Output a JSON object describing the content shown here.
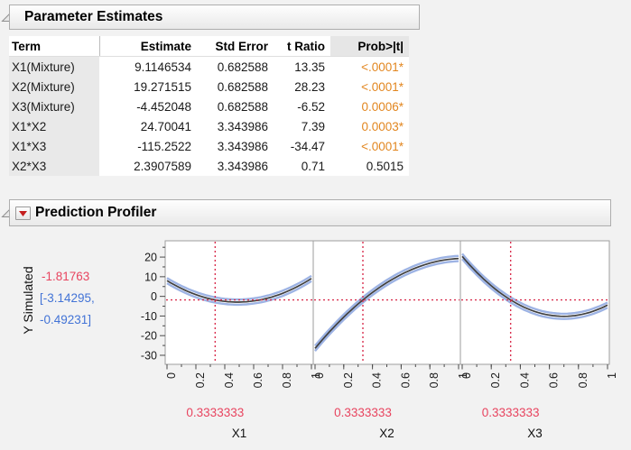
{
  "param_estimates": {
    "title": "Parameter Estimates",
    "columns": [
      "Term",
      "Estimate",
      "Std Error",
      "t Ratio",
      "Prob>|t|"
    ],
    "rows": [
      {
        "term": "X1(Mixture)",
        "estimate": "9.1146534",
        "std_error": "0.682588",
        "t_ratio": "13.35",
        "prob": "<.0001*",
        "sig": true
      },
      {
        "term": "X2(Mixture)",
        "estimate": "19.271515",
        "std_error": "0.682588",
        "t_ratio": "28.23",
        "prob": "<.0001*",
        "sig": true
      },
      {
        "term": "X3(Mixture)",
        "estimate": "-4.452048",
        "std_error": "0.682588",
        "t_ratio": "-6.52",
        "prob": "0.0006*",
        "sig": true
      },
      {
        "term": "X1*X2",
        "estimate": "24.70041",
        "std_error": "3.343986",
        "t_ratio": "7.39",
        "prob": "0.0003*",
        "sig": true
      },
      {
        "term": "X1*X3",
        "estimate": "-115.2522",
        "std_error": "3.343986",
        "t_ratio": "-34.47",
        "prob": "<.0001*",
        "sig": true
      },
      {
        "term": "X2*X3",
        "estimate": "2.3907589",
        "std_error": "3.343986",
        "t_ratio": "0.71",
        "prob": "0.5015",
        "sig": false
      }
    ]
  },
  "profiler": {
    "title": "Prediction Profiler",
    "current_value": "-1.81763",
    "ci_lines": [
      "[-3.14295,",
      "-0.49231]"
    ]
  },
  "chart_data": {
    "type": "line",
    "title": "Prediction Profiler",
    "ylabel": "Y Simulated",
    "response_current": -1.81763,
    "response_ci": [
      -3.14295,
      -0.49231
    ],
    "ylim": [
      -34.6,
      28.3
    ],
    "y_major_ticks": [
      20,
      10,
      0,
      -10,
      -20,
      -30
    ],
    "y_minor_step": 5,
    "xlim": [
      0,
      1
    ],
    "x_major_ticks": [
      0,
      0.2,
      0.4,
      0.6,
      0.8,
      1
    ],
    "x_major_tick_labels": [
      "0",
      "0.2",
      "0.4",
      "0.6",
      "0.8",
      "1"
    ],
    "x_minor_step": 0.1,
    "factor_setting": 0.3333333,
    "factor_setting_label": "0.3333333",
    "band_halfwidth": 1.33,
    "panels": [
      {
        "factor": "X1",
        "curve_quad_a": 8.0074,
        "curve_quad_b": -44.7663,
        "curve_quad_c": 45.8736
      },
      {
        "factor": "X2",
        "curve_quad_a": -26.4817,
        "curve_quad_b": 88.1118,
        "curve_quad_c": -42.3586
      },
      {
        "factor": "X3",
        "curve_quad_a": 20.3682,
        "curve_quad_b": -87.4261,
        "curve_quad_c": 62.6058
      }
    ],
    "colors": {
      "crosshair_red": "#d9304f",
      "value_red": "#e8445f",
      "ci_blue_text": "#4273d6",
      "band_blue": "#9db3e4",
      "curve_dark": "#3f3f3f",
      "sig_orange": "#e2861f",
      "frame_gray": "#9e9e9e"
    }
  }
}
